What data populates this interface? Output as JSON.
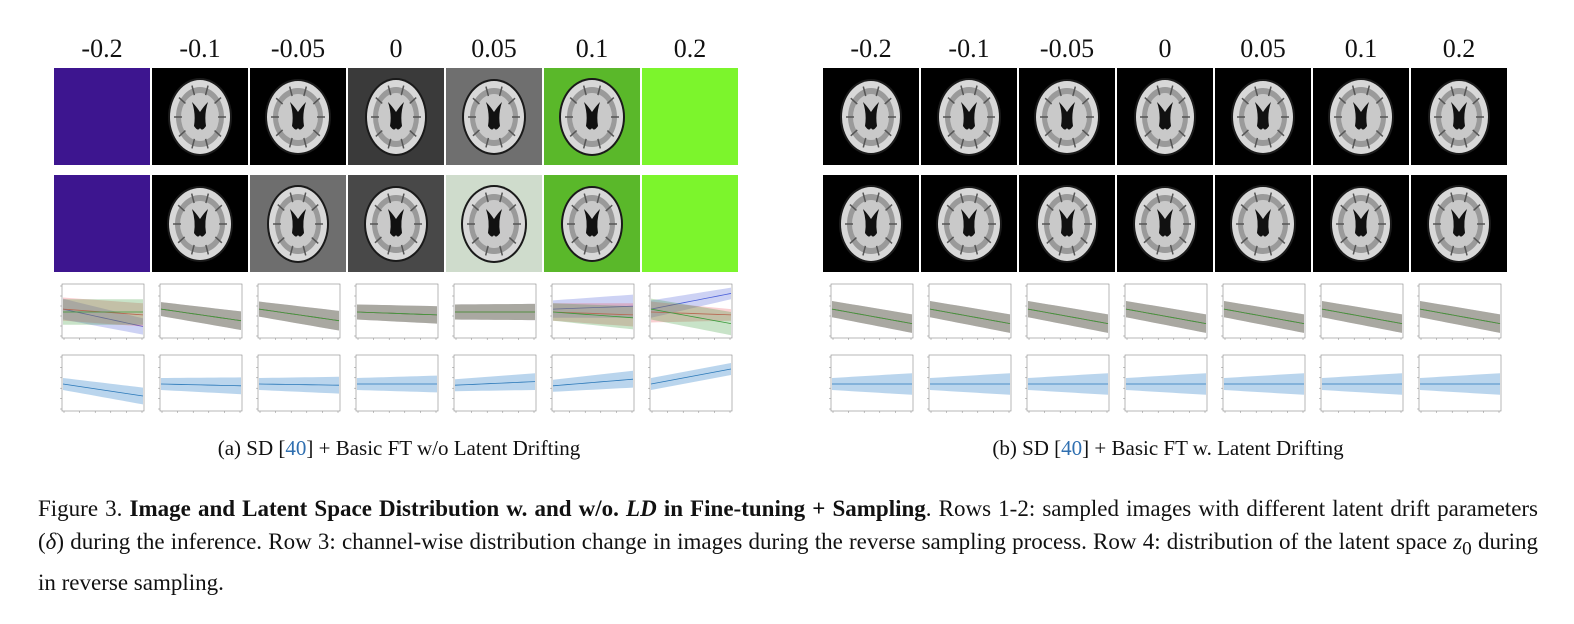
{
  "deltas": [
    "-0.2",
    "-0.1",
    "-0.05",
    "0",
    "0.05",
    "0.1",
    "0.2"
  ],
  "panel_a": {
    "caption_prefix": "(a) SD [",
    "cite": "40",
    "caption_suffix": "] + Basic FT w/o Latent Drifting",
    "row1_backgrounds": [
      "purple-noise",
      "black",
      "black",
      "dark-gray",
      "gray",
      "green",
      "bright-green"
    ],
    "row2_backgrounds": [
      "purple-noise",
      "black",
      "gray-noise",
      "dark-gray-vignette",
      "pale-green-noise",
      "green",
      "bright-green"
    ]
  },
  "panel_b": {
    "caption_prefix": "(b) SD [",
    "cite": "40",
    "caption_suffix": "] + Basic FT w. Latent Drifting",
    "row1_backgrounds": [
      "black",
      "black",
      "black",
      "black",
      "black",
      "black",
      "black"
    ],
    "row2_backgrounds": [
      "black",
      "black",
      "black",
      "black",
      "black",
      "black",
      "black"
    ]
  },
  "colors": {
    "citation": "#2f6fb0",
    "channel_red": "#e8535a",
    "channel_green": "#3a9a3a",
    "channel_blue": "#4a5fd8",
    "latent_band": "#a9cbe8",
    "latent_line": "#2a78b8"
  },
  "figure_caption": {
    "label": "Figure 3. ",
    "title_part1": "Image and Latent Space Distribution w. and w/o. ",
    "title_ld": "LD",
    "title_part2": " in Fine-tuning + Sampling",
    "text1": ". Rows 1-2: sampled images with different latent drift parameters (",
    "delta_symbol": "δ",
    "text2": ") during the inference. Row 3: channel-wise distribution change in images during the reverse sampling process. Row 4: distribution of the latent space ",
    "z_symbol": "z",
    "z_sub": "0",
    "text3": " during in reverse sampling."
  }
}
